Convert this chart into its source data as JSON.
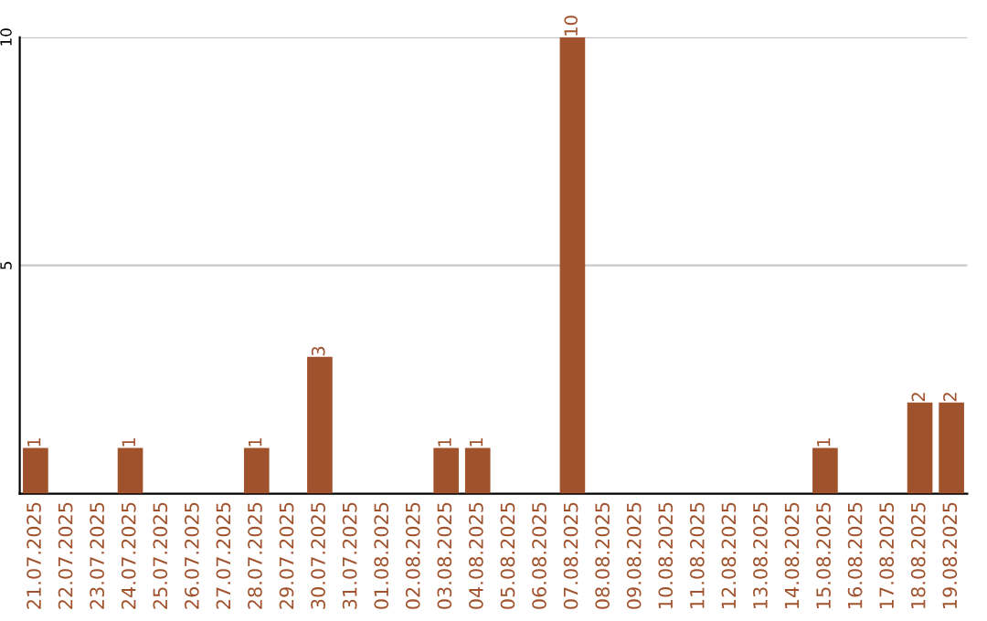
{
  "chart_data": {
    "type": "bar",
    "categories": [
      "21.07.2025",
      "22.07.2025",
      "23.07.2025",
      "24.07.2025",
      "25.07.2025",
      "26.07.2025",
      "27.07.2025",
      "28.07.2025",
      "29.07.2025",
      "30.07.2025",
      "31.07.2025",
      "01.08.2025",
      "02.08.2025",
      "03.08.2025",
      "04.08.2025",
      "05.08.2025",
      "06.08.2025",
      "07.08.2025",
      "08.08.2025",
      "09.08.2025",
      "10.08.2025",
      "11.08.2025",
      "12.08.2025",
      "13.08.2025",
      "14.08.2025",
      "15.08.2025",
      "16.08.2025",
      "17.08.2025",
      "18.08.2025",
      "19.08.2025"
    ],
    "values": [
      1,
      0,
      0,
      1,
      0,
      0,
      0,
      1,
      0,
      3,
      0,
      0,
      0,
      1,
      1,
      0,
      0,
      10,
      0,
      0,
      0,
      0,
      0,
      0,
      0,
      1,
      0,
      0,
      2,
      2
    ],
    "value_labels": [
      "1",
      null,
      null,
      "1",
      null,
      null,
      null,
      "1",
      null,
      "3",
      null,
      null,
      null,
      "1",
      "1",
      null,
      null,
      "10",
      null,
      null,
      null,
      null,
      null,
      null,
      null,
      "1",
      null,
      null,
      "2",
      "2"
    ],
    "color": "#a0522d",
    "ylim": [
      0,
      10
    ],
    "yticks": [
      5,
      10
    ],
    "grid": "y"
  }
}
